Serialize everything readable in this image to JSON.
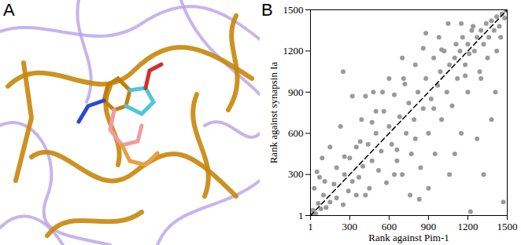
{
  "panel_a": {
    "label": "A"
  },
  "chart_data": {
    "type": "scatter",
    "title": "B",
    "x_label": "Rank against Pim-1",
    "y_label": "Rank against synapsin Ia",
    "xlim": [
      1,
      1500
    ],
    "ylim": [
      1,
      1500
    ],
    "xticks": [
      1,
      300,
      600,
      900,
      1200,
      1500
    ],
    "yticks": [
      1,
      300,
      600,
      900,
      1200,
      1500
    ],
    "color": "#9a9a9a",
    "marker": "circle",
    "diagonal": {
      "x": [
        1,
        1500
      ],
      "y": [
        1,
        1500
      ],
      "line_style": "dashed",
      "color": "#000000"
    },
    "x": [
      5,
      20,
      40,
      60,
      80,
      100,
      120,
      30,
      50,
      90,
      150,
      180,
      200,
      230,
      250,
      260,
      290,
      300,
      320,
      350,
      370,
      390,
      400,
      420,
      440,
      470,
      480,
      500,
      520,
      540,
      560,
      580,
      600,
      620,
      640,
      660,
      680,
      700,
      710,
      730,
      750,
      770,
      790,
      800,
      820,
      840,
      860,
      880,
      900,
      920,
      940,
      950,
      970,
      990,
      1000,
      1020,
      1040,
      1060,
      1080,
      1100,
      1110,
      1120,
      1140,
      1150,
      1160,
      1180,
      1200,
      1210,
      1230,
      1250,
      1270,
      1290,
      1300,
      1320,
      1340,
      1360,
      1380,
      1400,
      1420,
      1440,
      1460,
      1480,
      1490,
      1380,
      1470,
      1220,
      1060,
      900,
      830,
      600,
      420,
      320,
      700,
      1050,
      980,
      150,
      70,
      250,
      450,
      550,
      1200,
      1300,
      1420,
      1100,
      760,
      640,
      200,
      110,
      350,
      1150,
      1000,
      860,
      720,
      470,
      380,
      260,
      500,
      1240,
      1350,
      1450,
      1180,
      940,
      800,
      660,
      1270,
      1320,
      1410,
      880
    ],
    "y": [
      5,
      40,
      15,
      90,
      50,
      150,
      60,
      200,
      320,
      420,
      100,
      230,
      130,
      650,
      1050,
      300,
      180,
      420,
      250,
      500,
      280,
      700,
      360,
      150,
      520,
      400,
      900,
      600,
      330,
      470,
      760,
      240,
      650,
      520,
      880,
      400,
      720,
      300,
      1000,
      600,
      820,
      450,
      700,
      1100,
      900,
      350,
      780,
      1000,
      600,
      850,
      1150,
      450,
      950,
      1050,
      700,
      1200,
      900,
      1100,
      800,
      1150,
      1250,
      1000,
      1200,
      600,
      1300,
      1100,
      1250,
      1180,
      1350,
      1200,
      1300,
      1050,
      1350,
      1250,
      1400,
      1300,
      1420,
      1350,
      1450,
      1380,
      1470,
      1440,
      1495,
      700,
      100,
      30,
      300,
      200,
      120,
      1000,
      870,
      870,
      1150,
      1400,
      1300,
      500,
      280,
      80,
      200,
      900,
      900,
      1000,
      1200,
      450,
      150,
      300,
      350,
      250,
      150,
      1400,
      1210,
      1220,
      960,
      680,
      540,
      430,
      760,
      1380,
      1150,
      1300,
      1020,
      780,
      560,
      480,
      560,
      300,
      900,
      1330
    ]
  }
}
